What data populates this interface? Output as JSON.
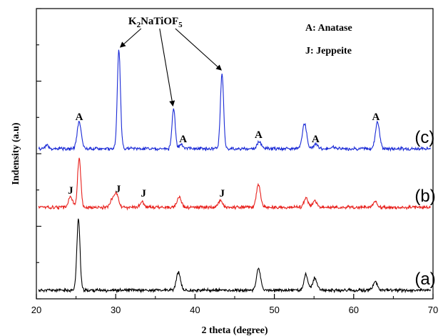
{
  "chart_data": {
    "type": "line",
    "title": "",
    "xlabel": "2 theta (degree)",
    "ylabel": "Indensity (a.u)",
    "xlim": [
      20,
      70
    ],
    "x_ticks": [
      "20",
      "30",
      "40",
      "50",
      "60",
      "70"
    ],
    "y_ticks_labeled": false,
    "grid": false,
    "legend": {
      "position": "top-right",
      "entries": [
        "A: Anatase",
        "J: Jeppeite"
      ]
    },
    "series": [
      {
        "name": "(a)",
        "color": "#000000",
        "baseline": 0.0,
        "peaks": [
          {
            "x": 25.3,
            "h": 1.0
          },
          {
            "x": 37.9,
            "h": 0.25
          },
          {
            "x": 48.0,
            "h": 0.3
          },
          {
            "x": 54.0,
            "h": 0.22
          },
          {
            "x": 55.1,
            "h": 0.17
          },
          {
            "x": 62.7,
            "h": 0.12
          }
        ]
      },
      {
        "name": "(b)",
        "color": "#e8201c",
        "baseline": 1.16,
        "peaks": [
          {
            "x": 24.3,
            "h": 0.15
          },
          {
            "x": 25.4,
            "h": 0.7
          },
          {
            "x": 29.6,
            "h": 0.12
          },
          {
            "x": 30.1,
            "h": 0.17
          },
          {
            "x": 33.3,
            "h": 0.07
          },
          {
            "x": 38.0,
            "h": 0.15
          },
          {
            "x": 43.2,
            "h": 0.1
          },
          {
            "x": 48.0,
            "h": 0.32
          },
          {
            "x": 54.0,
            "h": 0.13
          },
          {
            "x": 55.1,
            "h": 0.1
          },
          {
            "x": 62.7,
            "h": 0.08
          }
        ]
      },
      {
        "name": "(c)",
        "color": "#1a2ad6",
        "baseline": 1.98,
        "peaks": [
          {
            "x": 21.3,
            "h": 0.05
          },
          {
            "x": 25.4,
            "h": 0.37
          },
          {
            "x": 30.4,
            "h": 1.38
          },
          {
            "x": 37.3,
            "h": 0.57
          },
          {
            "x": 38.2,
            "h": 0.06
          },
          {
            "x": 43.4,
            "h": 1.06
          },
          {
            "x": 48.1,
            "h": 0.1
          },
          {
            "x": 53.8,
            "h": 0.36
          },
          {
            "x": 55.2,
            "h": 0.06
          },
          {
            "x": 57.4,
            "h": 0.03
          },
          {
            "x": 63.0,
            "h": 0.38
          }
        ]
      }
    ],
    "peak_labels": [
      {
        "text": "A",
        "x": 25.4,
        "y": 2.38
      },
      {
        "text": "A",
        "x": 38.5,
        "y": 2.07
      },
      {
        "text": "A",
        "x": 48.0,
        "y": 2.13
      },
      {
        "text": "A",
        "x": 55.2,
        "y": 2.07
      },
      {
        "text": "A",
        "x": 62.8,
        "y": 2.38
      },
      {
        "text": "J",
        "x": 24.3,
        "y": 1.35
      },
      {
        "text": "J",
        "x": 30.3,
        "y": 1.37
      },
      {
        "text": "J",
        "x": 33.5,
        "y": 1.31
      },
      {
        "text": "J",
        "x": 43.4,
        "y": 1.31
      }
    ],
    "compound_label": {
      "text": "K2NaTiOF5",
      "base": "K",
      "sub1": "2",
      "mid": "NaTiOF",
      "sub2": "5",
      "x": 35.0,
      "y": 3.72
    },
    "compound_arrows_to": [
      {
        "x": 30.4,
        "y": 3.4
      },
      {
        "x": 37.3,
        "y": 2.58
      },
      {
        "x": 43.4,
        "y": 3.08
      }
    ]
  }
}
